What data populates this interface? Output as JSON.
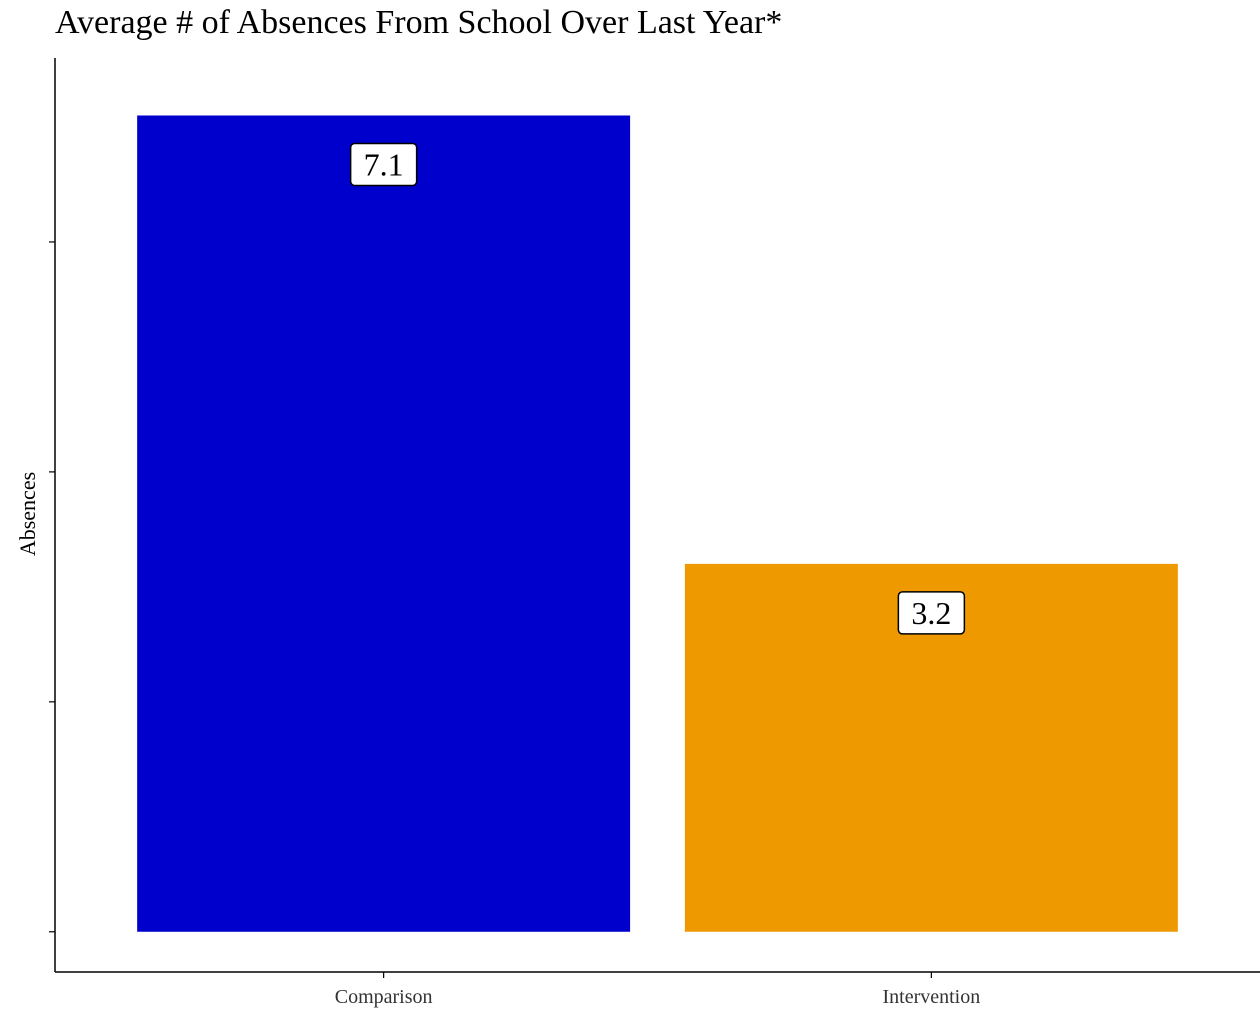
{
  "chart_data": {
    "type": "bar",
    "title": "Average # of Absences From School Over Last Year*",
    "xlabel": "",
    "ylabel": "Absences",
    "categories": [
      "Comparison",
      "Intervention"
    ],
    "values": [
      7.1,
      3.2
    ],
    "data_labels": [
      "7.1",
      "3.2"
    ],
    "colors": [
      "#0000CC",
      "#EE9900"
    ],
    "ylim": [
      -0.35,
      7.6
    ],
    "y_ticks": [
      0,
      2,
      4,
      6
    ],
    "y_tick_labels_shown": false,
    "grid": false,
    "legend": "none"
  }
}
